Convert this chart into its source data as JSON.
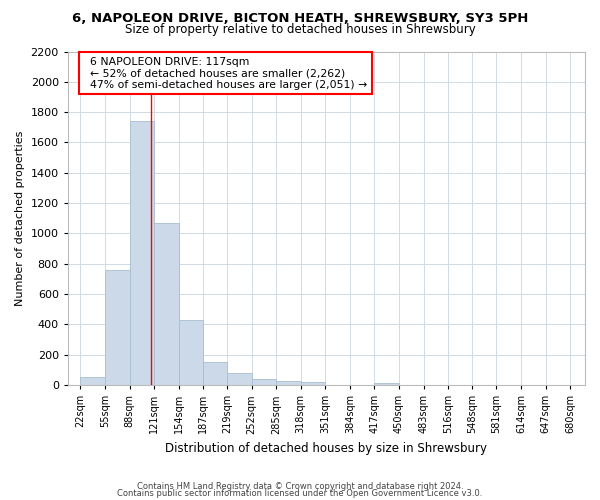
{
  "title": "6, NAPOLEON DRIVE, BICTON HEATH, SHREWSBURY, SY3 5PH",
  "subtitle": "Size of property relative to detached houses in Shrewsbury",
  "xlabel": "Distribution of detached houses by size in Shrewsbury",
  "ylabel": "Number of detached properties",
  "bar_color": "#ccd9e8",
  "bar_edge_color": "#a8bfcf",
  "bin_edges": [
    22,
    55,
    88,
    121,
    154,
    187,
    219,
    252,
    285,
    318,
    351,
    384,
    417,
    450,
    483,
    516,
    548,
    581,
    614,
    647,
    680
  ],
  "bar_heights": [
    55,
    760,
    1740,
    1070,
    430,
    155,
    80,
    40,
    25,
    20,
    0,
    0,
    12,
    0,
    0,
    0,
    0,
    0,
    0,
    0
  ],
  "x_tick_labels": [
    "22sqm",
    "55sqm",
    "88sqm",
    "121sqm",
    "154sqm",
    "187sqm",
    "219sqm",
    "252sqm",
    "285sqm",
    "318sqm",
    "351sqm",
    "384sqm",
    "417sqm",
    "450sqm",
    "483sqm",
    "516sqm",
    "548sqm",
    "581sqm",
    "614sqm",
    "647sqm",
    "680sqm"
  ],
  "ylim": [
    0,
    2200
  ],
  "yticks": [
    0,
    200,
    400,
    600,
    800,
    1000,
    1200,
    1400,
    1600,
    1800,
    2000,
    2200
  ],
  "xlim_left": 5,
  "xlim_right": 700,
  "property_line_x": 117,
  "annotation_title": "6 NAPOLEON DRIVE: 117sqm",
  "annotation_line1": "← 52% of detached houses are smaller (2,262)",
  "annotation_line2": "47% of semi-detached houses are larger (2,051) →",
  "footer_line1": "Contains HM Land Registry data © Crown copyright and database right 2024.",
  "footer_line2": "Contains public sector information licensed under the Open Government Licence v3.0.",
  "background_color": "#ffffff",
  "grid_color": "#d0dae4"
}
